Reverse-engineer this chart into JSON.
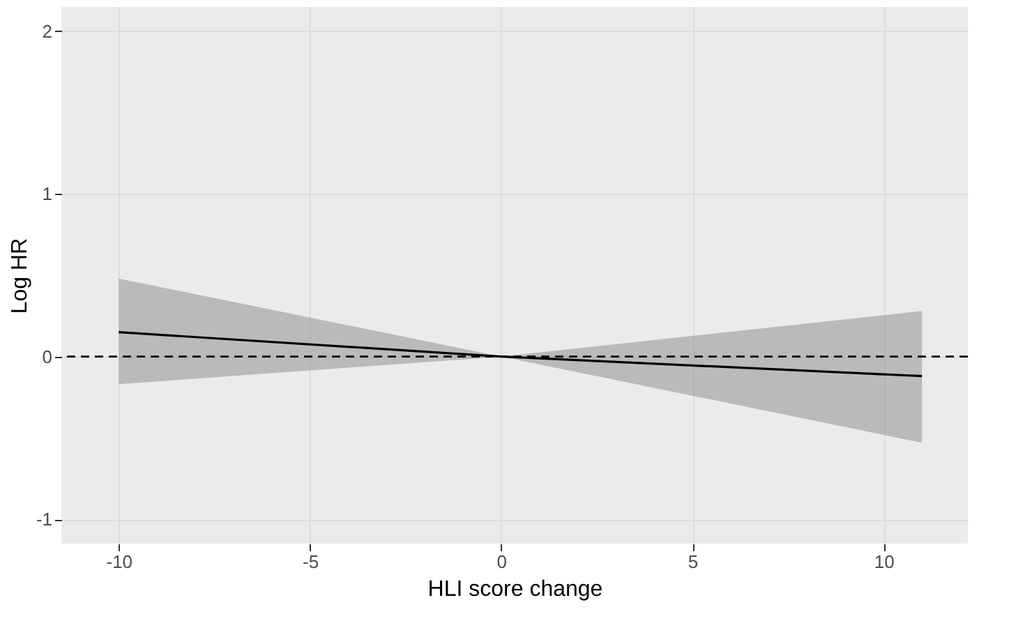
{
  "chart_data": {
    "type": "line",
    "xlabel": "HLI score change",
    "ylabel": "Log HR",
    "x": [
      -10,
      0,
      11
    ],
    "series": [
      {
        "color": "#000000",
        "values": [
          0.15,
          0,
          -0.12
        ],
        "lower": [
          -0.17,
          0,
          -0.53
        ],
        "upper": [
          0.48,
          0,
          0.28
        ]
      }
    ],
    "xlim": [
      -11.5,
      12.2
    ],
    "xticks": [
      -10,
      -5,
      0,
      5,
      10
    ],
    "ylim": [
      -1.15,
      2.15
    ],
    "yticks": [
      -1,
      0,
      1,
      2
    ],
    "ref_lines": [
      {
        "axis": "y",
        "value": 0,
        "color": "#000000",
        "line_style": "dashed"
      }
    ],
    "grid": true,
    "line_style": "solid",
    "marker": "none"
  }
}
